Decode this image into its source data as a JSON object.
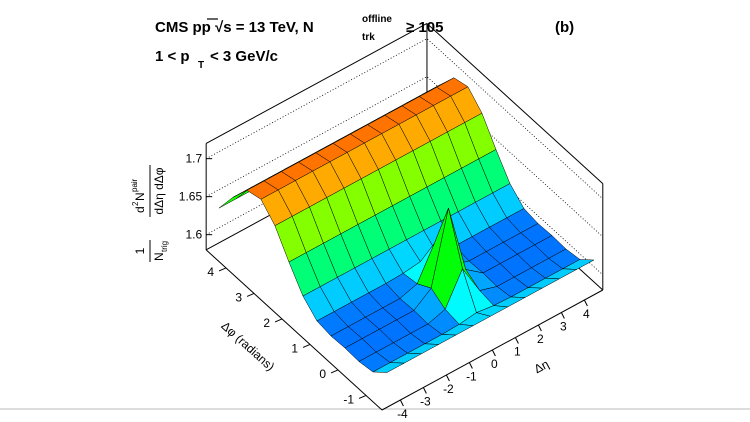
{
  "chart_data": {
    "type": "surface",
    "title": {
      "main": "CMS pp √s = 13 TeV, N",
      "sup": "offline",
      "sub": "trk",
      "tail": "≥  105"
    },
    "subtitle": {
      "main": "1 < p",
      "sub": "T",
      "tail": "< 3 GeV/c"
    },
    "panel_label": "(b)",
    "xlabel": "Δη",
    "ylabel": "Δφ (radians)",
    "zlabel": {
      "num1": "1",
      "den1": "N",
      "den1sub": "trig",
      "num2": "d",
      "num2sup": "2",
      "num2b": "N",
      "num2sup2": "pair",
      "den2": "dΔη dΔφ"
    },
    "x": [
      -4.5,
      -3.75,
      -3,
      -2.25,
      -1.5,
      -0.75,
      0,
      0.75,
      1.5,
      2.25,
      3,
      3.75,
      4.5
    ],
    "y": [
      -1.5,
      -1,
      -0.5,
      0,
      0.5,
      1,
      1.5,
      2,
      2.5,
      3,
      3.5,
      4,
      4.5
    ],
    "z": [
      [
        1.622,
        1.622,
        1.622,
        1.622,
        1.622,
        1.622,
        1.622,
        1.622,
        1.622,
        1.622,
        1.622,
        1.622,
        1.622
      ],
      [
        1.606,
        1.606,
        1.606,
        1.606,
        1.606,
        1.607,
        1.61,
        1.607,
        1.606,
        1.606,
        1.606,
        1.606,
        1.606
      ],
      [
        1.603,
        1.603,
        1.603,
        1.603,
        1.603,
        1.61,
        1.651,
        1.61,
        1.603,
        1.603,
        1.603,
        1.603,
        1.603
      ],
      [
        1.604,
        1.604,
        1.604,
        1.604,
        1.604,
        1.621,
        1.714,
        1.621,
        1.604,
        1.604,
        1.604,
        1.604,
        1.604
      ],
      [
        1.603,
        1.603,
        1.603,
        1.603,
        1.603,
        1.61,
        1.651,
        1.61,
        1.603,
        1.603,
        1.603,
        1.603,
        1.603
      ],
      [
        1.606,
        1.606,
        1.606,
        1.606,
        1.606,
        1.607,
        1.61,
        1.607,
        1.606,
        1.606,
        1.606,
        1.606,
        1.606
      ],
      [
        1.622,
        1.622,
        1.622,
        1.622,
        1.622,
        1.622,
        1.622,
        1.622,
        1.622,
        1.622,
        1.622,
        1.622,
        1.622
      ],
      [
        1.65,
        1.65,
        1.65,
        1.65,
        1.65,
        1.65,
        1.65,
        1.65,
        1.65,
        1.65,
        1.65,
        1.65,
        1.65
      ],
      [
        1.681,
        1.681,
        1.681,
        1.681,
        1.681,
        1.681,
        1.681,
        1.681,
        1.681,
        1.681,
        1.681,
        1.681,
        1.681
      ],
      [
        1.699,
        1.699,
        1.699,
        1.699,
        1.699,
        1.699,
        1.699,
        1.699,
        1.699,
        1.699,
        1.699,
        1.699,
        1.699
      ],
      [
        1.694,
        1.694,
        1.694,
        1.694,
        1.694,
        1.694,
        1.694,
        1.694,
        1.694,
        1.694,
        1.694,
        1.694,
        1.694
      ],
      [
        1.668,
        1.668,
        1.668,
        1.668,
        1.668,
        1.668,
        1.668,
        1.668,
        1.668,
        1.668,
        1.668,
        1.668,
        1.668
      ],
      [
        1.637,
        1.637,
        1.637,
        1.637,
        1.637,
        1.637,
        1.637,
        1.637,
        1.637,
        1.637,
        1.637,
        1.637,
        1.637
      ]
    ],
    "xlim": [
      -4.8,
      4.8
    ],
    "ylim": [
      -1.57,
      4.71
    ],
    "zlim": [
      1.58,
      1.72
    ],
    "xticks": [
      -4,
      -3,
      -2,
      -1,
      0,
      1,
      2,
      3,
      4
    ],
    "yticks": [
      -1,
      0,
      1,
      2,
      3,
      4
    ],
    "zticks": [
      1.6,
      1.65,
      1.7
    ]
  }
}
